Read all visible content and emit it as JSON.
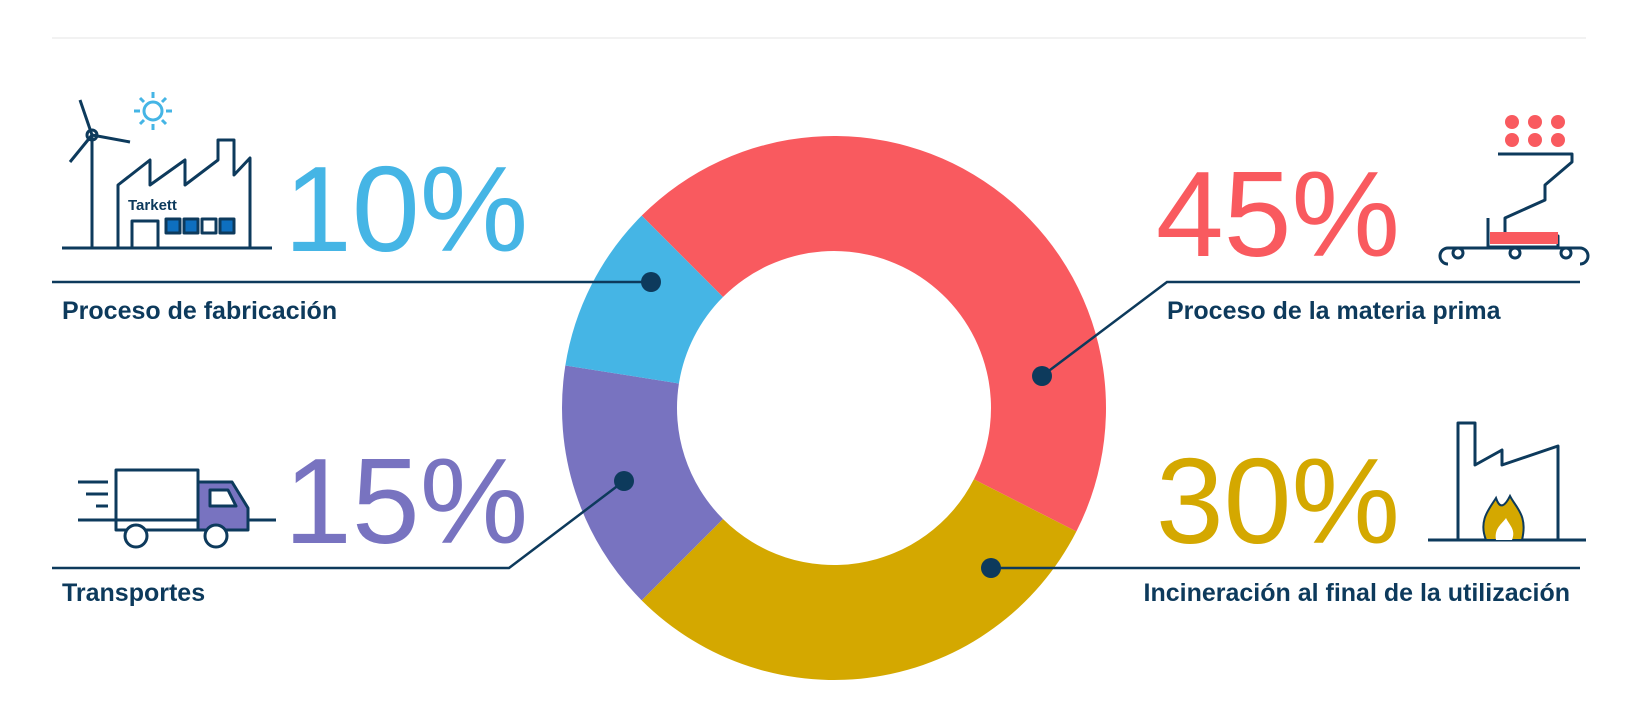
{
  "chart_data": {
    "type": "donut",
    "categories": [
      "Proceso de la materia prima",
      "Incineración al final de la utilización",
      "Transportes",
      "Proceso de fabricación"
    ],
    "values": [
      45,
      30,
      15,
      10
    ],
    "value_labels": [
      "45%",
      "30%",
      "15%",
      "10%"
    ],
    "colors": [
      "#f95a5f",
      "#d4a800",
      "#7873c0",
      "#45b5e5"
    ]
  },
  "icon_text": "Tarkett"
}
